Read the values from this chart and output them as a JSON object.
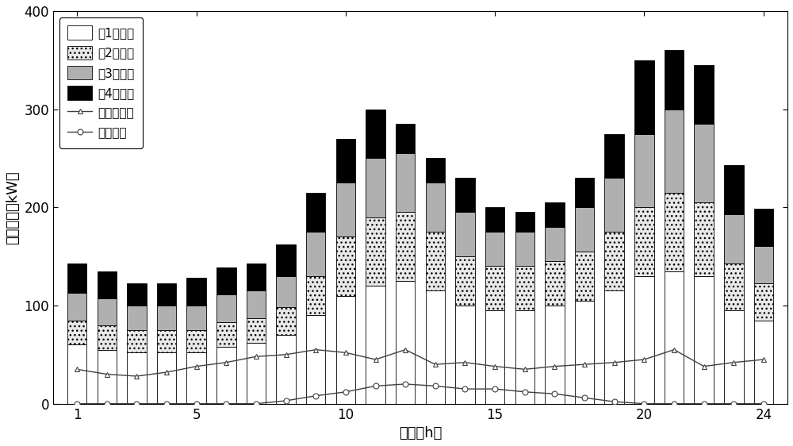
{
  "hours": [
    1,
    2,
    3,
    4,
    5,
    6,
    7,
    8,
    9,
    10,
    11,
    12,
    13,
    14,
    15,
    16,
    17,
    18,
    19,
    20,
    21,
    22,
    23,
    24
  ],
  "load1": [
    60,
    55,
    52,
    52,
    52,
    58,
    62,
    70,
    90,
    110,
    120,
    125,
    115,
    100,
    95,
    95,
    100,
    105,
    115,
    130,
    135,
    130,
    95,
    85
  ],
  "load2": [
    25,
    25,
    23,
    23,
    23,
    25,
    25,
    28,
    40,
    60,
    70,
    70,
    60,
    50,
    45,
    45,
    45,
    50,
    60,
    70,
    80,
    75,
    48,
    38
  ],
  "load3": [
    28,
    27,
    25,
    25,
    25,
    28,
    28,
    32,
    45,
    55,
    60,
    60,
    50,
    45,
    35,
    35,
    35,
    45,
    55,
    75,
    85,
    80,
    50,
    38
  ],
  "load4": [
    30,
    28,
    23,
    23,
    28,
    28,
    28,
    32,
    40,
    45,
    50,
    30,
    25,
    35,
    25,
    20,
    25,
    30,
    45,
    75,
    60,
    60,
    50,
    38
  ],
  "wind": [
    35,
    30,
    28,
    32,
    38,
    42,
    48,
    50,
    55,
    52,
    45,
    55,
    40,
    42,
    38,
    35,
    38,
    40,
    42,
    45,
    55,
    38,
    42,
    45
  ],
  "solar": [
    0,
    0,
    0,
    0,
    0,
    0,
    0,
    3,
    8,
    12,
    18,
    20,
    18,
    15,
    15,
    12,
    10,
    6,
    2,
    0,
    0,
    0,
    0,
    0
  ],
  "color_load1": "#ffffff",
  "color_load2": "#e8e8e8",
  "color_load3": "#b0b0b0",
  "color_load4": "#000000",
  "color_wind": "#404040",
  "color_solar": "#404040",
  "bar_edge": "#000000",
  "ylim": [
    0,
    400
  ],
  "yticks": [
    0,
    100,
    200,
    300,
    400
  ],
  "xticks": [
    1,
    5,
    10,
    15,
    20,
    24
  ],
  "xlabel": "时间（h）",
  "ylabel_text": "预测功率（kW）",
  "legend_labels": [
    "第1类负荷",
    "第2类负荷",
    "第3类负荷",
    "第4类负荷",
    "风力发电机",
    "光伏电池"
  ],
  "background": "#ffffff"
}
